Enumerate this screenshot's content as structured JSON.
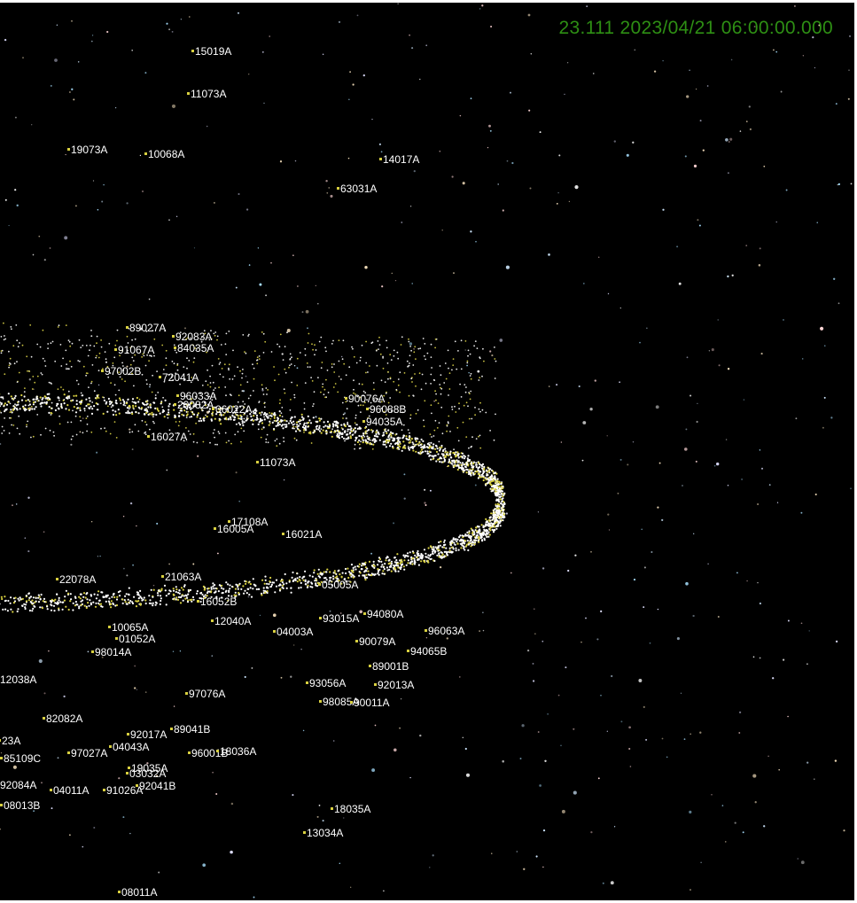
{
  "overlay": {
    "timestamp": "23.111 2023/04/21 06:00:00.000",
    "timestamp_color": "#2e8f14"
  },
  "scene": {
    "background": "#000000",
    "satellite_marker_color": "#d8d040",
    "label_color": "#ffffff"
  },
  "labels": [
    "15019A",
    "11073A",
    "19073A",
    "10068A",
    "14017A",
    "63031A",
    "89027A",
    "92083A",
    "84035A",
    "91067A",
    "97002B",
    "72041A",
    "96033A",
    "20082A",
    "06022A",
    "16027A",
    "11073A",
    "90076A",
    "96088B",
    "94035A",
    "17108A",
    "16005A",
    "16021A",
    "22078A",
    "21063A",
    "16052B",
    "12040A",
    "04003A",
    "05005A",
    "93015A",
    "94080A",
    "96063A",
    "10065A",
    "01052A",
    "98014A",
    "90079A",
    "94065B",
    "89001B",
    "93056A",
    "92013A",
    "98085A",
    "90011A",
    "12038A",
    "97076A",
    "82082A",
    "92017A",
    "89041B",
    "23A",
    "85109C",
    "97027A",
    "04043A",
    "96001B",
    "18036A",
    "19035A",
    "03032A",
    "92041B",
    "92084A",
    "04011A",
    "91026A",
    "08013B",
    "18035A",
    "13034A",
    "08011A"
  ]
}
